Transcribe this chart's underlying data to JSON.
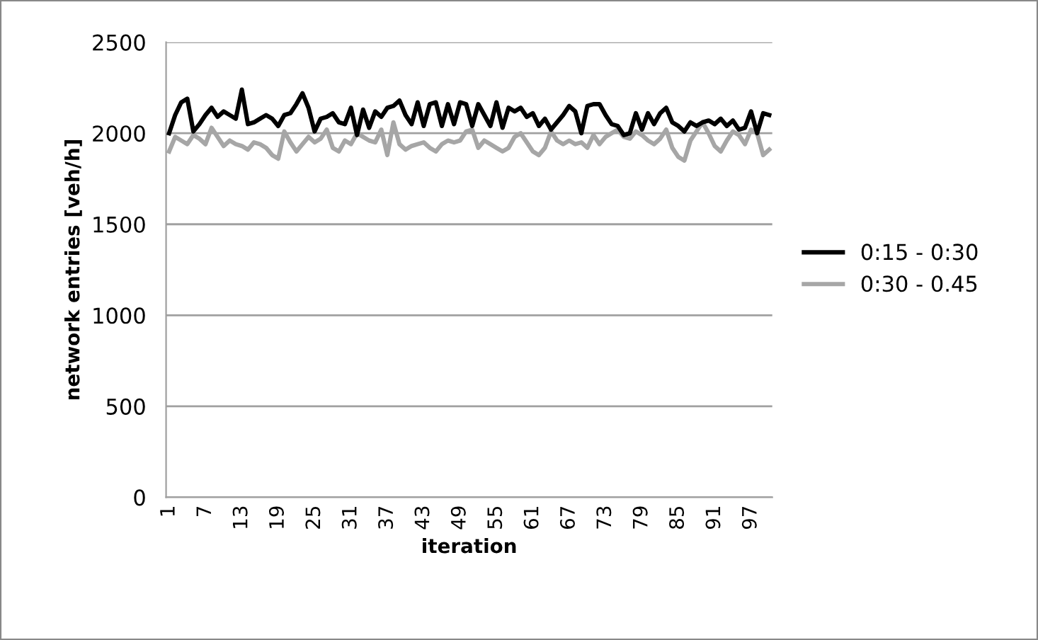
{
  "chart_data": {
    "type": "line",
    "xlabel": "iteration",
    "ylabel": "network entries [veh/h]",
    "categories": [
      "1",
      null,
      null,
      null,
      null,
      null,
      "7",
      null,
      null,
      null,
      null,
      null,
      "13",
      null,
      null,
      null,
      null,
      null,
      "19",
      null,
      null,
      null,
      null,
      null,
      "25",
      null,
      null,
      null,
      null,
      null,
      "31",
      null,
      null,
      null,
      null,
      null,
      "37",
      null,
      null,
      null,
      null,
      null,
      "43",
      null,
      null,
      null,
      null,
      null,
      "49",
      null,
      null,
      null,
      null,
      null,
      "55",
      null,
      null,
      null,
      null,
      null,
      "61",
      null,
      null,
      null,
      null,
      null,
      "67",
      null,
      null,
      null,
      null,
      null,
      "73",
      null,
      null,
      null,
      null,
      null,
      "79",
      null,
      null,
      null,
      null,
      null,
      "85",
      null,
      null,
      null,
      null,
      null,
      "91",
      null,
      null,
      null,
      null,
      null,
      "97",
      null,
      null,
      null
    ],
    "series": [
      {
        "name": "0:15 - 0:30",
        "color": "#000000",
        "values": [
          2000,
          2100,
          2170,
          2190,
          2010,
          2050,
          2100,
          2140,
          2090,
          2120,
          2100,
          2080,
          2240,
          2050,
          2060,
          2080,
          2100,
          2080,
          2040,
          2100,
          2110,
          2160,
          2220,
          2140,
          2010,
          2080,
          2090,
          2110,
          2060,
          2050,
          2140,
          1990,
          2130,
          2030,
          2120,
          2090,
          2140,
          2150,
          2180,
          2100,
          2050,
          2170,
          2040,
          2160,
          2170,
          2040,
          2160,
          2050,
          2170,
          2160,
          2040,
          2160,
          2100,
          2040,
          2170,
          2030,
          2140,
          2120,
          2140,
          2090,
          2110,
          2040,
          2080,
          2020,
          2060,
          2100,
          2150,
          2120,
          2000,
          2150,
          2160,
          2160,
          2100,
          2050,
          2040,
          1990,
          2000,
          2110,
          2020,
          2110,
          2050,
          2110,
          2140,
          2060,
          2040,
          2010,
          2060,
          2040,
          2060,
          2070,
          2050,
          2080,
          2040,
          2070,
          2020,
          2030,
          2120,
          2000,
          2110,
          2100
        ]
      },
      {
        "name": "0:30 - 0.45",
        "color": "#a6a6a6",
        "values": [
          1900,
          1980,
          1960,
          1940,
          1990,
          1970,
          1940,
          2030,
          1980,
          1930,
          1960,
          1940,
          1930,
          1910,
          1950,
          1940,
          1920,
          1880,
          1860,
          2010,
          1950,
          1900,
          1940,
          1980,
          1950,
          1970,
          2020,
          1920,
          1900,
          1960,
          1940,
          2000,
          1980,
          1960,
          1950,
          2020,
          1880,
          2060,
          1940,
          1910,
          1930,
          1940,
          1950,
          1920,
          1900,
          1940,
          1960,
          1950,
          1960,
          2010,
          2020,
          1920,
          1960,
          1940,
          1920,
          1900,
          1920,
          1980,
          2000,
          1950,
          1900,
          1880,
          1920,
          2010,
          1960,
          1940,
          1960,
          1940,
          1950,
          1920,
          1990,
          1940,
          1980,
          2000,
          2020,
          1980,
          1970,
          2010,
          1990,
          1960,
          1940,
          1970,
          2020,
          1920,
          1870,
          1850,
          1960,
          2010,
          2060,
          2000,
          1930,
          1900,
          1960,
          2010,
          1990,
          1940,
          2020,
          2000,
          1880,
          1910
        ]
      }
    ],
    "ylim": [
      0,
      2500
    ],
    "yticks": [
      0,
      500,
      1000,
      1500,
      2000,
      2500
    ],
    "grid": "y",
    "legend": "right",
    "marker": "none",
    "line_style": "solid"
  }
}
